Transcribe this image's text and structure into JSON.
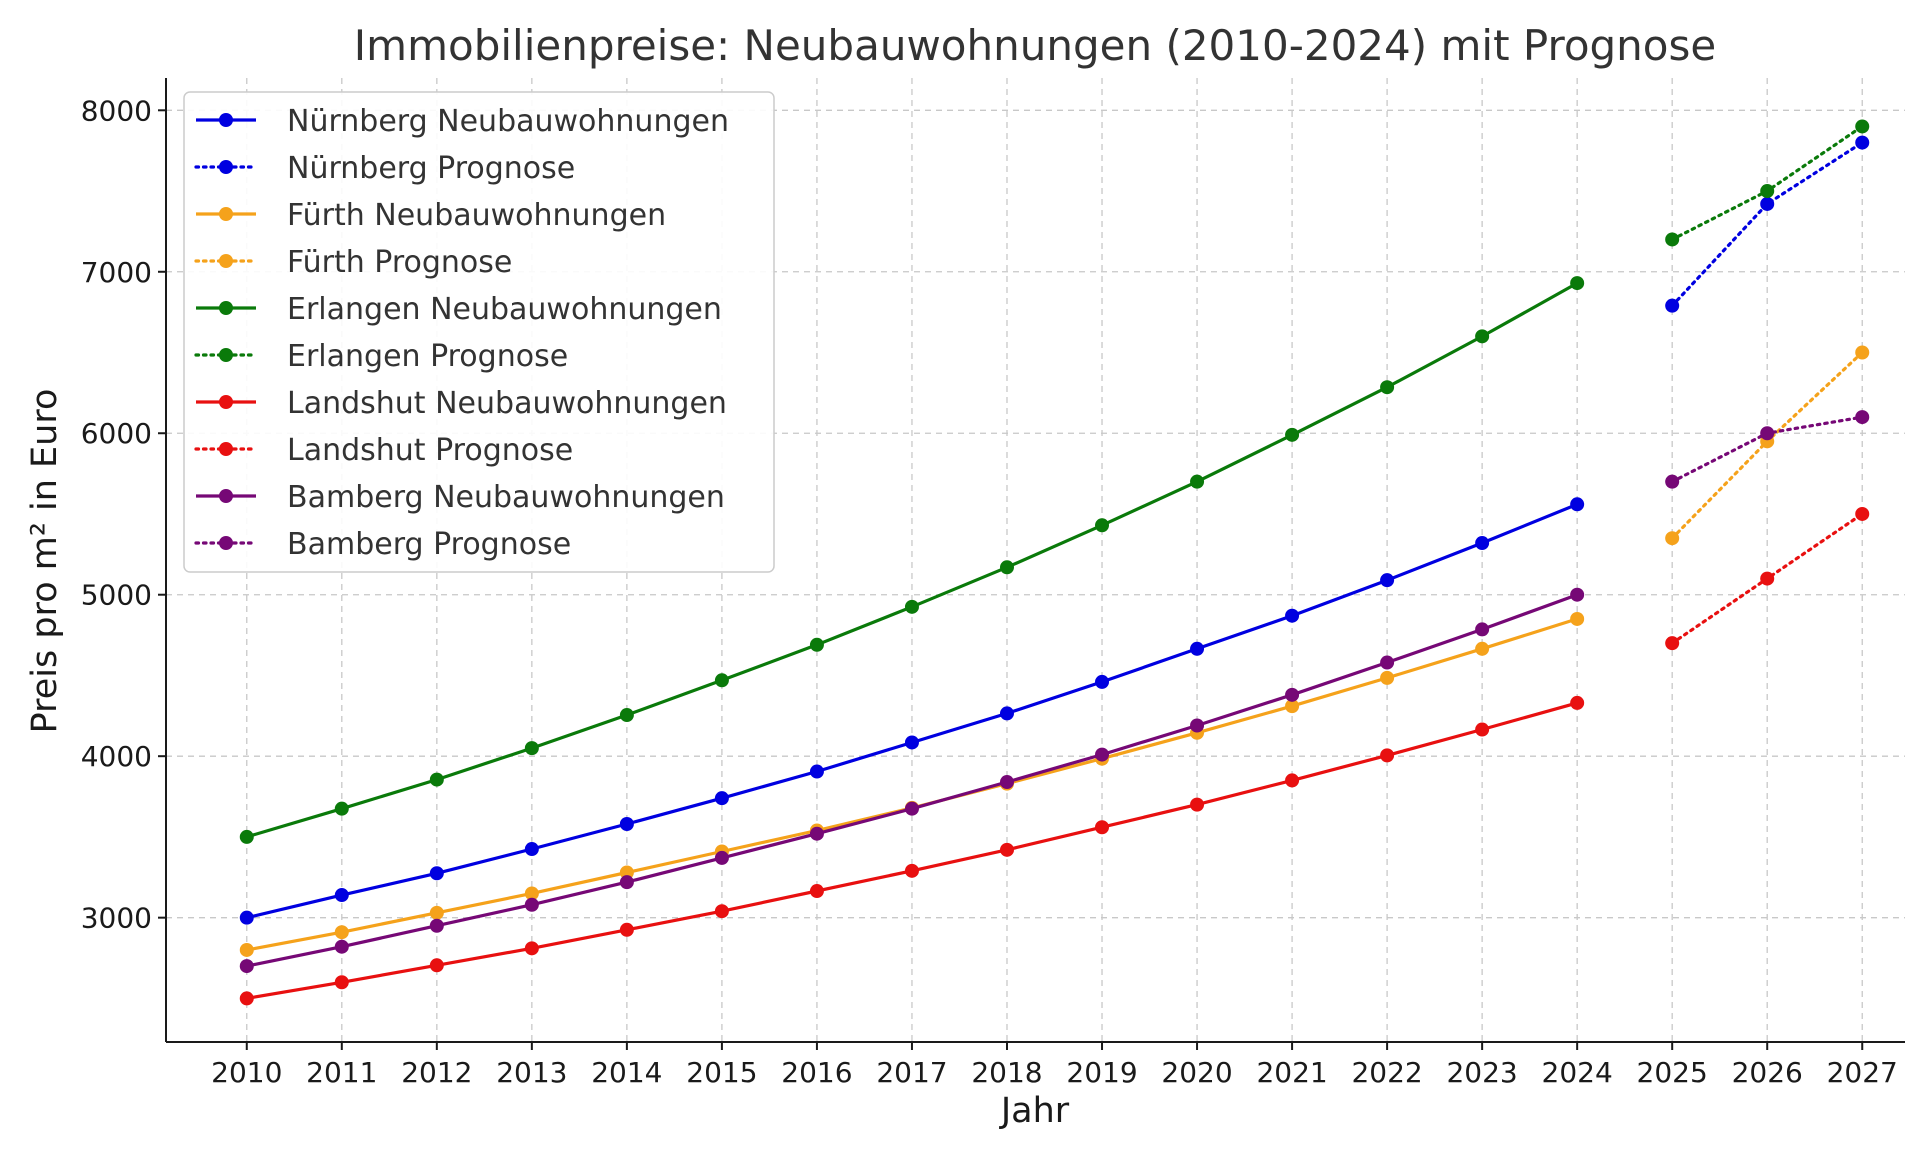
{
  "chart_data": {
    "type": "line",
    "title": "Immobilienpreise: Neubauwohnungen (2010-2024) mit Prognose",
    "xlabel": "Jahr",
    "ylabel": "Preis pro m² in Euro",
    "xlim": [
      2009.15,
      2027.45
    ],
    "ylim": [
      2230,
      8200
    ],
    "x_ticks": [
      2010,
      2011,
      2012,
      2013,
      2014,
      2015,
      2016,
      2017,
      2018,
      2019,
      2020,
      2021,
      2022,
      2023,
      2024,
      2025,
      2026,
      2027
    ],
    "y_ticks": [
      3000,
      4000,
      5000,
      6000,
      7000,
      8000
    ],
    "grid": true,
    "legend_position": "top-left",
    "historical_x": [
      2010,
      2011,
      2012,
      2013,
      2014,
      2015,
      2016,
      2017,
      2018,
      2019,
      2020,
      2021,
      2022,
      2023,
      2024
    ],
    "forecast_x": [
      2025,
      2026,
      2027
    ],
    "series": [
      {
        "name": "Nürnberg Neubauwohnungen",
        "style": "solid",
        "color": "#0000e0",
        "values": [
          3000,
          3140,
          3275,
          3425,
          3580,
          3740,
          3905,
          4085,
          4265,
          4460,
          4665,
          4870,
          5090,
          5320,
          5560
        ]
      },
      {
        "name": "Nürnberg Prognose",
        "style": "dotted",
        "color": "#0000e0",
        "values": [
          6790,
          7420,
          7800
        ]
      },
      {
        "name": "Fürth Neubauwohnungen",
        "style": "solid",
        "color": "#f5a21b",
        "values": [
          2800,
          2910,
          3030,
          3150,
          3280,
          3410,
          3540,
          3680,
          3830,
          3985,
          4145,
          4310,
          4485,
          4665,
          4850
        ]
      },
      {
        "name": "Fürth Prognose",
        "style": "dotted",
        "color": "#f5a21b",
        "values": [
          5350,
          5950,
          6500
        ]
      },
      {
        "name": "Erlangen Neubauwohnungen",
        "style": "solid",
        "color": "#0a7a0a",
        "values": [
          3500,
          3675,
          3855,
          4050,
          4255,
          4470,
          4690,
          4925,
          5170,
          5430,
          5700,
          5990,
          6285,
          6600,
          6930
        ]
      },
      {
        "name": "Erlangen Prognose",
        "style": "dotted",
        "color": "#0a7a0a",
        "values": [
          7200,
          7500,
          7900
        ]
      },
      {
        "name": "Landshut Neubauwohnungen",
        "style": "solid",
        "color": "#e81010",
        "values": [
          2500,
          2600,
          2705,
          2810,
          2925,
          3040,
          3165,
          3290,
          3420,
          3560,
          3700,
          3850,
          4005,
          4165,
          4330
        ]
      },
      {
        "name": "Landshut Prognose",
        "style": "dotted",
        "color": "#e81010",
        "values": [
          4700,
          5100,
          5500
        ]
      },
      {
        "name": "Bamberg Neubauwohnungen",
        "style": "solid",
        "color": "#760876",
        "values": [
          2700,
          2820,
          2950,
          3080,
          3220,
          3370,
          3520,
          3675,
          3840,
          4010,
          4190,
          4380,
          4580,
          4785,
          5000
        ]
      },
      {
        "name": "Bamberg Prognose",
        "style": "dotted",
        "color": "#760876",
        "values": [
          5700,
          6000,
          6100
        ]
      }
    ]
  }
}
